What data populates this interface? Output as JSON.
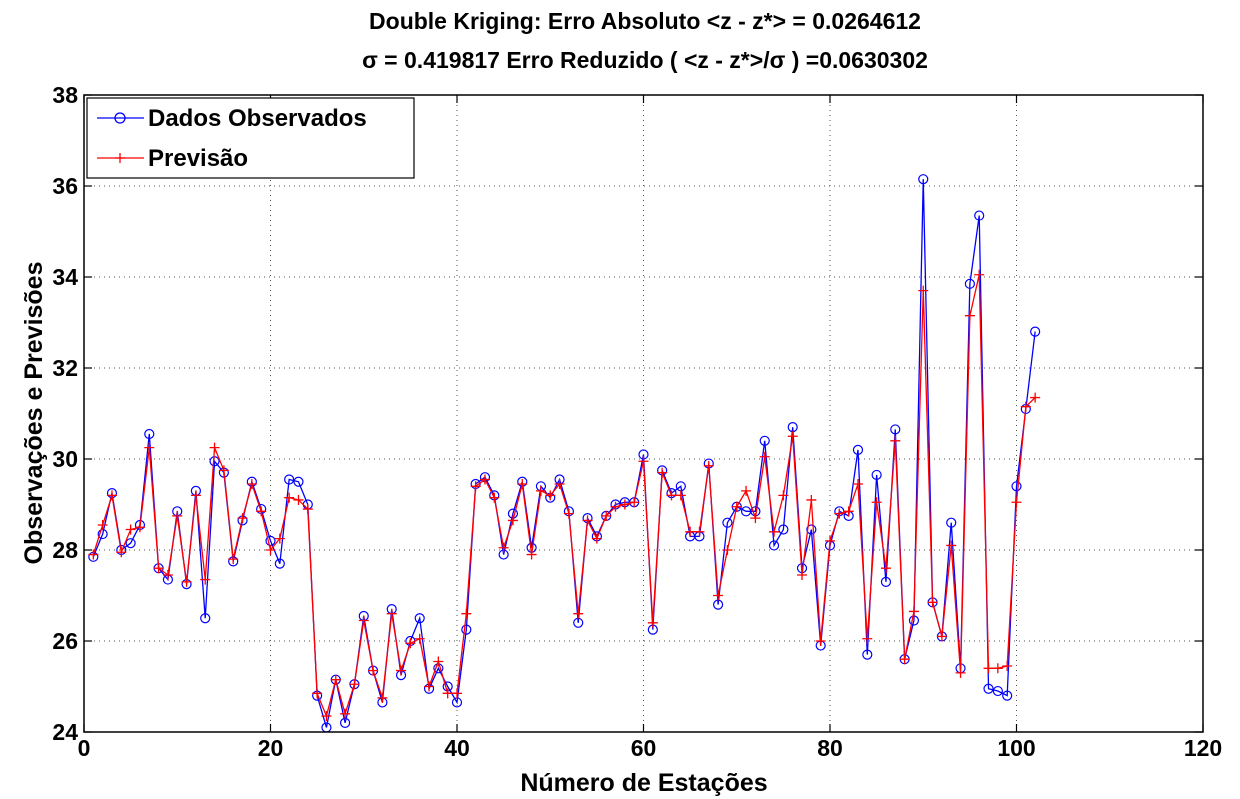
{
  "chart_data": {
    "type": "line",
    "title": "Double Kriging: Erro Absoluto <z - z*> = 0.0264612",
    "subtitle": "σ = 0.419817  Erro Reduzido ( <z - z*>/σ ) =0.0630302",
    "xlabel": "Número de Estações",
    "ylabel": "Observações e Previsões",
    "xlim": [
      0,
      120
    ],
    "ylim": [
      24,
      38
    ],
    "xticks": [
      0,
      20,
      40,
      60,
      80,
      100,
      120
    ],
    "yticks": [
      24,
      26,
      28,
      30,
      32,
      34,
      36,
      38
    ],
    "grid": true,
    "legend_position": "top-left",
    "colors": {
      "observed": "#0000ff",
      "predicted": "#ff0000"
    },
    "series": [
      {
        "name": "Dados Observados",
        "marker": "circle",
        "x": [
          1,
          2,
          3,
          4,
          5,
          6,
          7,
          8,
          9,
          10,
          11,
          12,
          13,
          14,
          15,
          16,
          17,
          18,
          19,
          20,
          21,
          22,
          23,
          24,
          25,
          26,
          27,
          28,
          29,
          30,
          31,
          32,
          33,
          34,
          35,
          36,
          37,
          38,
          39,
          40,
          41,
          42,
          43,
          44,
          45,
          46,
          47,
          48,
          49,
          50,
          51,
          52,
          53,
          54,
          55,
          56,
          57,
          58,
          59,
          60,
          61,
          62,
          63,
          64,
          65,
          66,
          67,
          68,
          69,
          70,
          71,
          72,
          73,
          74,
          75,
          76,
          77,
          78,
          79,
          80,
          81,
          82,
          83,
          84,
          85,
          86,
          87,
          88,
          89,
          90,
          91,
          92,
          93,
          94,
          95,
          96,
          97,
          98,
          99,
          100,
          101,
          102
        ],
        "values": [
          27.85,
          28.35,
          29.25,
          28.0,
          28.15,
          28.55,
          30.55,
          27.6,
          27.35,
          28.85,
          27.25,
          29.3,
          26.5,
          29.95,
          29.7,
          27.75,
          28.65,
          29.5,
          28.9,
          28.2,
          27.7,
          29.55,
          29.5,
          29.0,
          24.8,
          24.1,
          25.15,
          24.2,
          25.05,
          26.55,
          25.35,
          24.65,
          26.7,
          25.25,
          26.0,
          26.5,
          24.95,
          25.4,
          25.0,
          24.65,
          26.25,
          29.45,
          29.6,
          29.2,
          27.9,
          28.8,
          29.5,
          28.05,
          29.4,
          29.15,
          29.55,
          28.85,
          26.4,
          28.7,
          28.3,
          28.75,
          29.0,
          29.05,
          29.05,
          30.1,
          26.25,
          29.75,
          29.25,
          29.4,
          28.3,
          28.3,
          29.9,
          26.8,
          28.6,
          28.95,
          28.85,
          28.85,
          30.4,
          28.1,
          28.45,
          30.7,
          27.6,
          28.45,
          25.9,
          28.1,
          28.85,
          28.75,
          30.2,
          25.7,
          29.65,
          27.3,
          30.65,
          25.6,
          26.45,
          36.15,
          26.85,
          26.1,
          28.6,
          25.4,
          33.85,
          35.35,
          24.95,
          24.9,
          24.8,
          29.4,
          31.1,
          32.8
        ]
      },
      {
        "name": "Previsão",
        "marker": "plus",
        "x": [
          1,
          2,
          3,
          4,
          5,
          6,
          7,
          8,
          9,
          10,
          11,
          12,
          13,
          14,
          15,
          16,
          17,
          18,
          19,
          20,
          21,
          22,
          23,
          24,
          25,
          26,
          27,
          28,
          29,
          30,
          31,
          32,
          33,
          34,
          35,
          36,
          37,
          38,
          39,
          40,
          41,
          42,
          43,
          44,
          45,
          46,
          47,
          48,
          49,
          50,
          51,
          52,
          53,
          54,
          55,
          56,
          57,
          58,
          59,
          60,
          61,
          62,
          63,
          64,
          65,
          66,
          67,
          68,
          69,
          70,
          71,
          72,
          73,
          74,
          75,
          76,
          77,
          78,
          79,
          80,
          81,
          82,
          83,
          84,
          85,
          86,
          87,
          88,
          89,
          90,
          91,
          92,
          93,
          94,
          95,
          96,
          97,
          98,
          99,
          100,
          101,
          102
        ],
        "values": [
          27.9,
          28.55,
          29.2,
          27.95,
          28.45,
          28.5,
          30.25,
          27.6,
          27.45,
          28.75,
          27.3,
          29.2,
          27.35,
          30.25,
          29.75,
          27.8,
          28.7,
          29.45,
          28.85,
          28.0,
          28.25,
          29.15,
          29.1,
          28.9,
          24.85,
          24.35,
          25.15,
          24.4,
          25.05,
          26.45,
          25.35,
          24.75,
          26.6,
          25.35,
          25.95,
          26.05,
          25.0,
          25.55,
          24.85,
          24.85,
          26.6,
          29.4,
          29.55,
          29.15,
          28.05,
          28.65,
          29.45,
          27.9,
          29.3,
          29.2,
          29.45,
          28.8,
          26.6,
          28.65,
          28.25,
          28.75,
          28.95,
          29.0,
          29.05,
          29.95,
          26.4,
          29.7,
          29.2,
          29.2,
          28.4,
          28.4,
          29.85,
          27.0,
          28.0,
          28.95,
          29.3,
          28.7,
          30.05,
          28.4,
          29.2,
          30.5,
          27.45,
          29.1,
          26.0,
          28.2,
          28.8,
          28.85,
          29.45,
          26.05,
          29.05,
          27.6,
          30.4,
          25.6,
          26.65,
          33.7,
          26.85,
          26.1,
          28.1,
          25.3,
          33.15,
          34.05,
          25.4,
          25.4,
          25.45,
          29.05,
          31.15,
          31.35
        ]
      }
    ]
  }
}
